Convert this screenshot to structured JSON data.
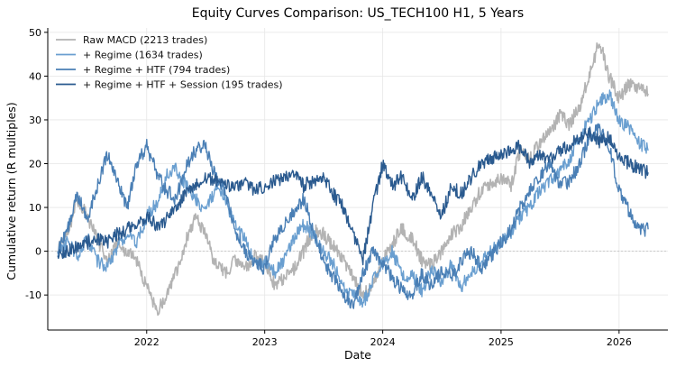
{
  "chart_data": {
    "type": "line",
    "title": "Equity Curves Comparison: US_TECH100 H1, 5 Years",
    "xlabel": "Date",
    "ylabel": "Cumulative return (R multiples)",
    "xlim": [
      "2021-03-01",
      "2026-06-01"
    ],
    "ylim": [
      -18,
      51
    ],
    "x_ticks": [
      "2022-01-01",
      "2023-01-01",
      "2024-01-01",
      "2025-01-01",
      "2026-01-01"
    ],
    "x_tick_labels": [
      "2022",
      "2023",
      "2024",
      "2025",
      "2026"
    ],
    "y_ticks": [
      -10,
      0,
      10,
      20,
      30,
      40,
      50
    ],
    "y_tick_labels": [
      "-10",
      "0",
      "10",
      "20",
      "30",
      "40",
      "50"
    ],
    "grid": true,
    "zero_line": true,
    "legend_position": "top-left",
    "series": [
      {
        "name": "Raw MACD (2213 trades)",
        "color": "#b3b3b3",
        "x": [
          "2021-04-01",
          "2021-05-01",
          "2021-06-01",
          "2021-07-01",
          "2021-08-01",
          "2021-09-01",
          "2021-10-01",
          "2021-11-01",
          "2021-12-01",
          "2022-01-01",
          "2022-02-01",
          "2022-03-01",
          "2022-04-01",
          "2022-05-01",
          "2022-06-01",
          "2022-07-01",
          "2022-08-01",
          "2022-09-01",
          "2022-10-01",
          "2022-11-01",
          "2022-12-01",
          "2023-01-01",
          "2023-02-01",
          "2023-03-01",
          "2023-04-01",
          "2023-05-01",
          "2023-06-01",
          "2023-07-01",
          "2023-08-01",
          "2023-09-01",
          "2023-10-01",
          "2023-11-01",
          "2023-12-01",
          "2024-01-01",
          "2024-02-01",
          "2024-03-01",
          "2024-04-01",
          "2024-05-01",
          "2024-06-01",
          "2024-07-01",
          "2024-08-01",
          "2024-09-01",
          "2024-10-01",
          "2024-11-01",
          "2024-12-01",
          "2025-01-01",
          "2025-02-01",
          "2025-03-01",
          "2025-04-01",
          "2025-05-01",
          "2025-06-01",
          "2025-07-01",
          "2025-08-01",
          "2025-09-01",
          "2025-10-01",
          "2025-11-01",
          "2025-12-01",
          "2026-01-01",
          "2026-02-01",
          "2026-03-01",
          "2026-04-01"
        ],
        "values": [
          0,
          4,
          12,
          8,
          3,
          -3,
          2,
          0,
          -2,
          -8,
          -14,
          -10,
          -5,
          2,
          8,
          4,
          -3,
          -5,
          -2,
          -4,
          -1,
          -2,
          -8,
          -6,
          -4,
          0,
          5,
          4,
          1,
          -2,
          -6,
          -10,
          -8,
          -2,
          2,
          5,
          3,
          -2,
          -3,
          0,
          4,
          6,
          10,
          14,
          15,
          17,
          15,
          23,
          21,
          25,
          27,
          31,
          29,
          33,
          40,
          48,
          40,
          35,
          38,
          37,
          36
        ]
      },
      {
        "name": "+ Regime (1634 trades)",
        "color": "#6a9fd0",
        "x": [
          "2021-04-01",
          "2021-05-01",
          "2021-06-01",
          "2021-07-01",
          "2021-08-01",
          "2021-09-01",
          "2021-10-01",
          "2021-11-01",
          "2021-12-01",
          "2022-01-01",
          "2022-02-01",
          "2022-03-01",
          "2022-04-01",
          "2022-05-01",
          "2022-06-01",
          "2022-07-01",
          "2022-08-01",
          "2022-09-01",
          "2022-10-01",
          "2022-11-01",
          "2022-12-01",
          "2023-01-01",
          "2023-02-01",
          "2023-03-01",
          "2023-04-01",
          "2023-05-01",
          "2023-06-01",
          "2023-07-01",
          "2023-08-01",
          "2023-09-01",
          "2023-10-01",
          "2023-11-01",
          "2023-12-01",
          "2024-01-01",
          "2024-02-01",
          "2024-03-01",
          "2024-04-01",
          "2024-05-01",
          "2024-06-01",
          "2024-07-01",
          "2024-08-01",
          "2024-09-01",
          "2024-10-01",
          "2024-11-01",
          "2024-12-01",
          "2025-01-01",
          "2025-02-01",
          "2025-03-01",
          "2025-04-01",
          "2025-05-01",
          "2025-06-01",
          "2025-07-01",
          "2025-08-01",
          "2025-09-01",
          "2025-10-01",
          "2025-11-01",
          "2025-12-01",
          "2026-01-01",
          "2026-02-01",
          "2026-03-01",
          "2026-04-01"
        ],
        "values": [
          0,
          2,
          -1,
          3,
          -2,
          -4,
          1,
          4,
          2,
          8,
          11,
          17,
          19,
          15,
          12,
          9,
          14,
          12,
          6,
          3,
          -3,
          -2,
          -5,
          -2,
          3,
          6,
          4,
          0,
          -3,
          -8,
          -10,
          -12,
          -7,
          -3,
          0,
          -6,
          -5,
          -9,
          -4,
          -7,
          -3,
          -8,
          -5,
          -2,
          0,
          2,
          4,
          8,
          10,
          14,
          16,
          18,
          21,
          26,
          30,
          34,
          36,
          30,
          28,
          25,
          23
        ]
      },
      {
        "name": "+ Regime + HTF (794 trades)",
        "color": "#4a7fb5",
        "x": [
          "2021-04-01",
          "2021-05-01",
          "2021-06-01",
          "2021-07-01",
          "2021-08-01",
          "2021-09-01",
          "2021-10-01",
          "2021-11-01",
          "2021-12-01",
          "2022-01-01",
          "2022-02-01",
          "2022-03-01",
          "2022-04-01",
          "2022-05-01",
          "2022-06-01",
          "2022-07-01",
          "2022-08-01",
          "2022-09-01",
          "2022-10-01",
          "2022-11-01",
          "2022-12-01",
          "2023-01-01",
          "2023-02-01",
          "2023-03-01",
          "2023-04-01",
          "2023-05-01",
          "2023-06-01",
          "2023-07-01",
          "2023-08-01",
          "2023-09-01",
          "2023-10-01",
          "2023-11-01",
          "2023-12-01",
          "2024-01-01",
          "2024-02-01",
          "2024-03-01",
          "2024-04-01",
          "2024-05-01",
          "2024-06-01",
          "2024-07-01",
          "2024-08-01",
          "2024-09-01",
          "2024-10-01",
          "2024-11-01",
          "2024-12-01",
          "2025-01-01",
          "2025-02-01",
          "2025-03-01",
          "2025-04-01",
          "2025-05-01",
          "2025-06-01",
          "2025-07-01",
          "2025-08-01",
          "2025-09-01",
          "2025-10-01",
          "2025-11-01",
          "2025-12-01",
          "2026-01-01",
          "2026-02-01",
          "2026-03-01",
          "2026-04-01"
        ],
        "values": [
          0,
          5,
          13,
          7,
          15,
          22,
          17,
          10,
          20,
          24,
          18,
          14,
          12,
          19,
          23,
          24,
          17,
          14,
          5,
          0,
          -2,
          -4,
          3,
          6,
          9,
          12,
          5,
          -2,
          -6,
          -10,
          -12,
          -5,
          0,
          -3,
          -6,
          -9,
          -10,
          -5,
          -8,
          -4,
          -6,
          -2,
          0,
          -4,
          -1,
          2,
          5,
          10,
          14,
          17,
          20,
          15,
          16,
          20,
          26,
          28,
          24,
          14,
          9,
          5,
          5
        ]
      },
      {
        "name": "+ Regime + HTF + Session (195 trades)",
        "color": "#2a5a8f",
        "x": [
          "2021-04-01",
          "2021-05-01",
          "2021-06-01",
          "2021-07-01",
          "2021-08-01",
          "2021-09-01",
          "2021-10-01",
          "2021-11-01",
          "2021-12-01",
          "2022-01-01",
          "2022-02-01",
          "2022-03-01",
          "2022-04-01",
          "2022-05-01",
          "2022-06-01",
          "2022-07-01",
          "2022-08-01",
          "2022-09-01",
          "2022-10-01",
          "2022-11-01",
          "2022-12-01",
          "2023-01-01",
          "2023-02-01",
          "2023-03-01",
          "2023-04-01",
          "2023-05-01",
          "2023-06-01",
          "2023-07-01",
          "2023-08-01",
          "2023-09-01",
          "2023-10-01",
          "2023-11-01",
          "2023-12-01",
          "2024-01-01",
          "2024-02-01",
          "2024-03-01",
          "2024-04-01",
          "2024-05-01",
          "2024-06-01",
          "2024-07-01",
          "2024-08-01",
          "2024-09-01",
          "2024-10-01",
          "2024-11-01",
          "2024-12-01",
          "2025-01-01",
          "2025-02-01",
          "2025-03-01",
          "2025-04-01",
          "2025-05-01",
          "2025-06-01",
          "2025-07-01",
          "2025-08-01",
          "2025-09-01",
          "2025-10-01",
          "2025-11-01",
          "2025-12-01",
          "2026-01-01",
          "2026-02-01",
          "2026-03-01",
          "2026-04-01"
        ],
        "values": [
          -1,
          0,
          1,
          2,
          3,
          2,
          4,
          5,
          6,
          8,
          6,
          7,
          10,
          13,
          15,
          17,
          16,
          15,
          15,
          16,
          14,
          15,
          16,
          17,
          18,
          15,
          16,
          17,
          13,
          10,
          4,
          -2,
          10,
          20,
          15,
          17,
          12,
          17,
          13,
          8,
          15,
          13,
          17,
          20,
          21,
          22,
          23,
          24,
          20,
          22,
          21,
          23,
          24,
          26,
          27,
          25,
          26,
          22,
          20,
          19,
          18
        ]
      }
    ]
  }
}
